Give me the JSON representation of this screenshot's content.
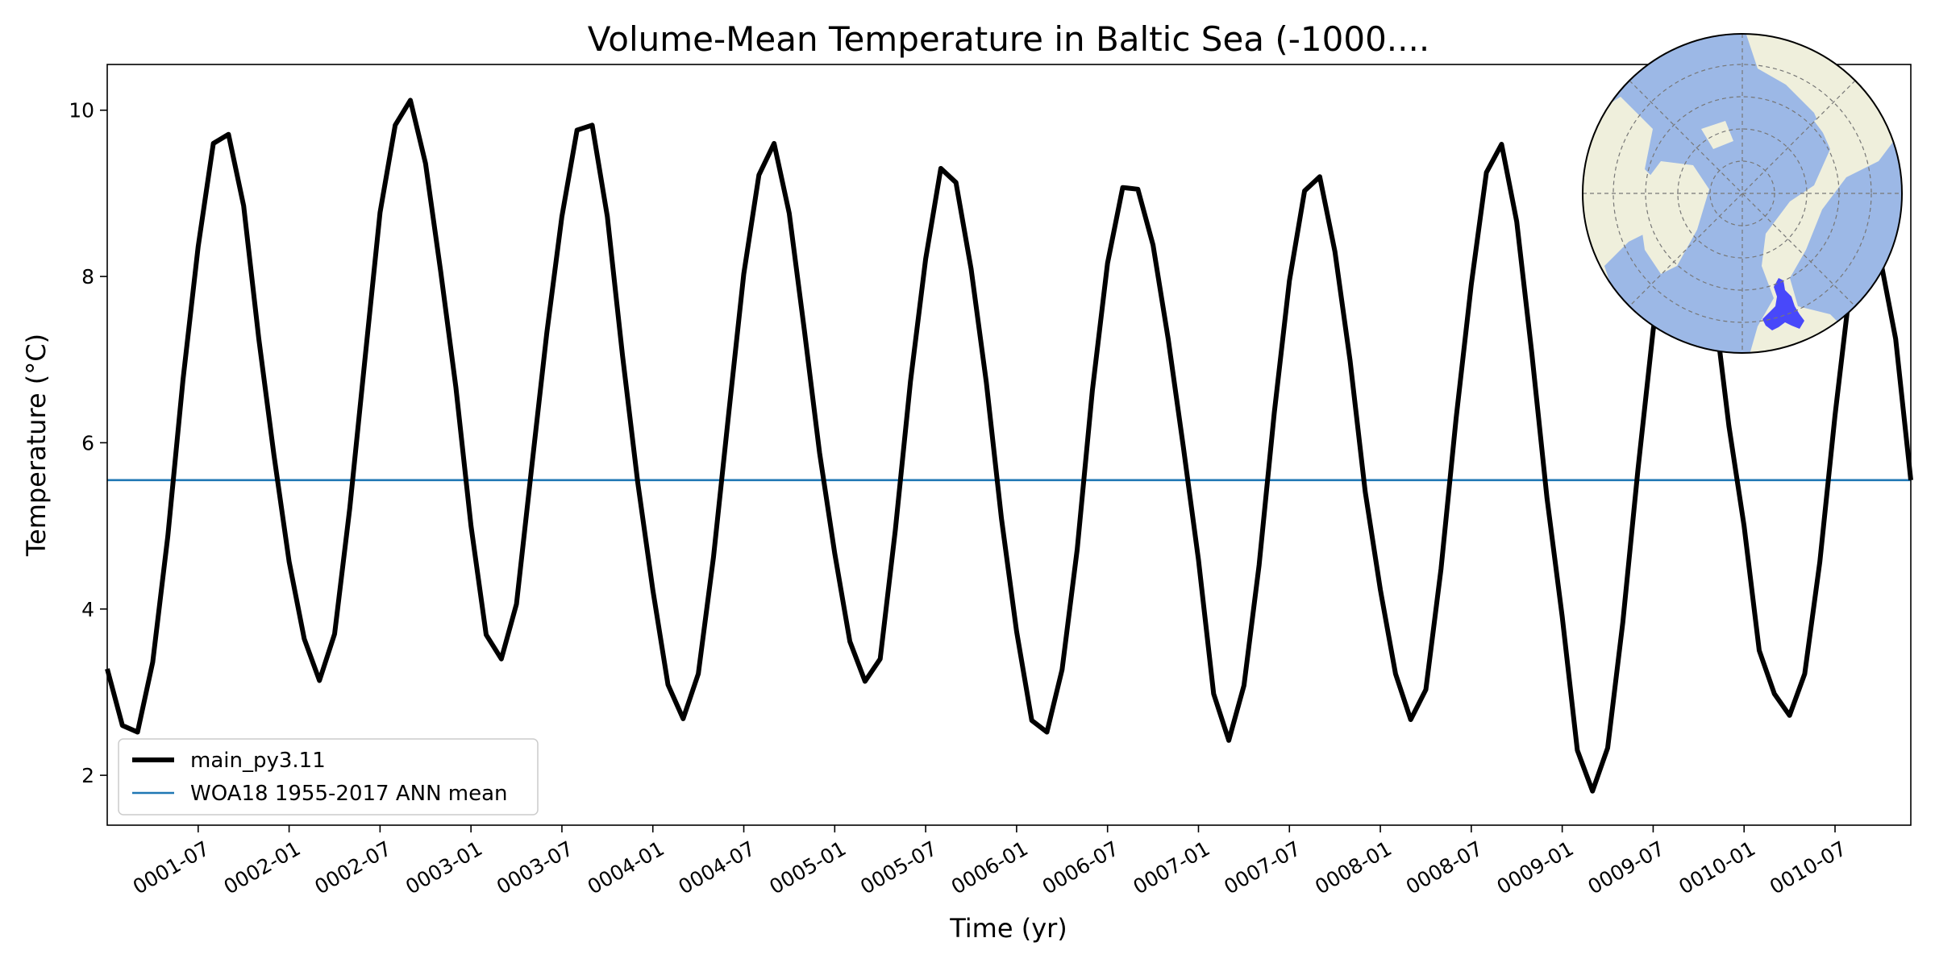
{
  "chart_data": {
    "type": "line",
    "title": "Volume-Mean Temperature in Baltic Sea (-1000....",
    "xlabel": "Time (yr)",
    "ylabel": "Temperature ($^\\circ$C)",
    "ylabel_display": "Temperature (°C)",
    "xlim": [
      "0001-01",
      "0010-12"
    ],
    "ylim": [
      1.4,
      10.55
    ],
    "yticks": [
      2,
      4,
      6,
      8,
      10
    ],
    "xticks": [
      "0001-07",
      "0002-01",
      "0002-07",
      "0003-01",
      "0003-07",
      "0004-01",
      "0004-07",
      "0005-01",
      "0005-07",
      "0006-01",
      "0006-07",
      "0007-01",
      "0007-07",
      "0008-01",
      "0008-07",
      "0009-01",
      "0009-07",
      "0010-01",
      "0010-07"
    ],
    "grid": false,
    "legend_position": "lower-left",
    "series": [
      {
        "name": "main_py3.11",
        "color": "#000000",
        "x": [
          "0001-01",
          "0001-02",
          "0001-03",
          "0001-04",
          "0001-05",
          "0001-06",
          "0001-07",
          "0001-08",
          "0001-09",
          "0001-10",
          "0001-11",
          "0001-12",
          "0002-01",
          "0002-02",
          "0002-03",
          "0002-04",
          "0002-05",
          "0002-06",
          "0002-07",
          "0002-08",
          "0002-09",
          "0002-10",
          "0002-11",
          "0002-12",
          "0003-01",
          "0003-02",
          "0003-03",
          "0003-04",
          "0003-05",
          "0003-06",
          "0003-07",
          "0003-08",
          "0003-09",
          "0003-10",
          "0003-11",
          "0003-12",
          "0004-01",
          "0004-02",
          "0004-03",
          "0004-04",
          "0004-05",
          "0004-06",
          "0004-07",
          "0004-08",
          "0004-09",
          "0004-10",
          "0004-11",
          "0004-12",
          "0005-01",
          "0005-02",
          "0005-03",
          "0005-04",
          "0005-05",
          "0005-06",
          "0005-07",
          "0005-08",
          "0005-09",
          "0005-10",
          "0005-11",
          "0005-12",
          "0006-01",
          "0006-02",
          "0006-03",
          "0006-04",
          "0006-05",
          "0006-06",
          "0006-07",
          "0006-08",
          "0006-09",
          "0006-10",
          "0006-11",
          "0006-12",
          "0007-01",
          "0007-02",
          "0007-03",
          "0007-04",
          "0007-05",
          "0007-06",
          "0007-07",
          "0007-08",
          "0007-09",
          "0007-10",
          "0007-11",
          "0007-12",
          "0008-01",
          "0008-02",
          "0008-03",
          "0008-04",
          "0008-05",
          "0008-06",
          "0008-07",
          "0008-08",
          "0008-09",
          "0008-10",
          "0008-11",
          "0008-12",
          "0009-01",
          "0009-02",
          "0009-03",
          "0009-04",
          "0009-05",
          "0009-06",
          "0009-07",
          "0009-08",
          "0009-09",
          "0009-10",
          "0009-11",
          "0009-12",
          "0010-01",
          "0010-02",
          "0010-03",
          "0010-04",
          "0010-05",
          "0010-06",
          "0010-07",
          "0010-08",
          "0010-09",
          "0010-10",
          "0010-11",
          "0010-12"
        ],
        "values": [
          3.28,
          2.6,
          2.52,
          3.36,
          4.88,
          6.76,
          8.36,
          9.6,
          9.71,
          8.85,
          7.25,
          5.85,
          4.57,
          3.64,
          3.14,
          3.7,
          5.21,
          7.0,
          8.77,
          9.82,
          10.12,
          9.36,
          8.06,
          6.67,
          5.0,
          3.69,
          3.4,
          4.06,
          5.7,
          7.32,
          8.72,
          9.76,
          9.82,
          8.72,
          7.05,
          5.53,
          4.23,
          3.09,
          2.68,
          3.22,
          4.62,
          6.34,
          8.03,
          9.22,
          9.6,
          8.76,
          7.35,
          5.88,
          4.67,
          3.61,
          3.13,
          3.4,
          4.95,
          6.74,
          8.21,
          9.3,
          9.13,
          8.09,
          6.73,
          5.09,
          3.73,
          2.66,
          2.52,
          3.27,
          4.72,
          6.63,
          8.16,
          9.07,
          9.05,
          8.38,
          7.25,
          5.95,
          4.59,
          2.98,
          2.42,
          3.08,
          4.53,
          6.36,
          7.95,
          9.03,
          9.2,
          8.3,
          6.99,
          5.41,
          4.23,
          3.22,
          2.67,
          3.03,
          4.48,
          6.3,
          7.9,
          9.25,
          9.59,
          8.66,
          7.07,
          5.33,
          3.91,
          2.3,
          1.81,
          2.33,
          3.84,
          5.68,
          7.35,
          8.6,
          8.9,
          8.4,
          7.7,
          6.2,
          5.0,
          3.5,
          2.98,
          2.72,
          3.22,
          4.57,
          6.33,
          7.88,
          8.8,
          8.2,
          7.25,
          5.55
        ]
      },
      {
        "name": "WOA18 1955-2017 ANN mean",
        "color": "#1f77b4",
        "constant": 5.55
      }
    ]
  },
  "inset_map": {
    "type": "north-polar-stereographic",
    "ocean_color": "#9cb8e6",
    "land_color": "#efefdc",
    "highlight_region_color": "#2020ff"
  }
}
